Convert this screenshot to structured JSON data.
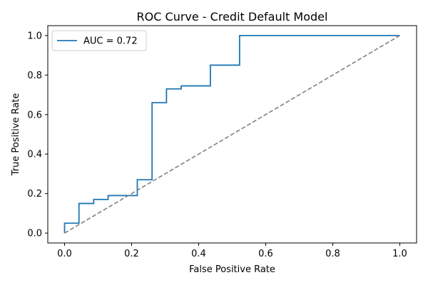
{
  "chart_data": {
    "type": "line",
    "title": "ROC Curve - Credit Default Model",
    "xlabel": "False Positive Rate",
    "ylabel": "True Positive Rate",
    "xlim": [
      -0.05,
      1.05
    ],
    "ylim": [
      -0.05,
      1.05
    ],
    "xticks": [
      "0.0",
      "0.2",
      "0.4",
      "0.6",
      "0.8",
      "1.0"
    ],
    "yticks": [
      "0.0",
      "0.2",
      "0.4",
      "0.6",
      "0.8",
      "1.0"
    ],
    "xtick_values": [
      0.0,
      0.2,
      0.4,
      0.6,
      0.8,
      1.0
    ],
    "ytick_values": [
      0.0,
      0.2,
      0.4,
      0.6,
      0.8,
      1.0
    ],
    "grid": false,
    "legend_position": "top-left",
    "series": [
      {
        "name": "AUC = 0.72",
        "color": "#1f77b4",
        "style": "solid",
        "x": [
          0.0,
          0.0,
          0.043,
          0.043,
          0.087,
          0.087,
          0.13,
          0.13,
          0.217,
          0.217,
          0.261,
          0.261,
          0.304,
          0.304,
          0.348,
          0.348,
          0.435,
          0.435,
          0.522,
          0.522,
          1.0
        ],
        "y": [
          0.0,
          0.05,
          0.05,
          0.15,
          0.15,
          0.17,
          0.17,
          0.19,
          0.19,
          0.27,
          0.27,
          0.66,
          0.66,
          0.73,
          0.73,
          0.745,
          0.745,
          0.85,
          0.85,
          1.0,
          1.0
        ]
      },
      {
        "color": "#808080",
        "style": "dashed",
        "x": [
          0.0,
          1.0
        ],
        "y": [
          0.0,
          1.0
        ]
      }
    ]
  }
}
